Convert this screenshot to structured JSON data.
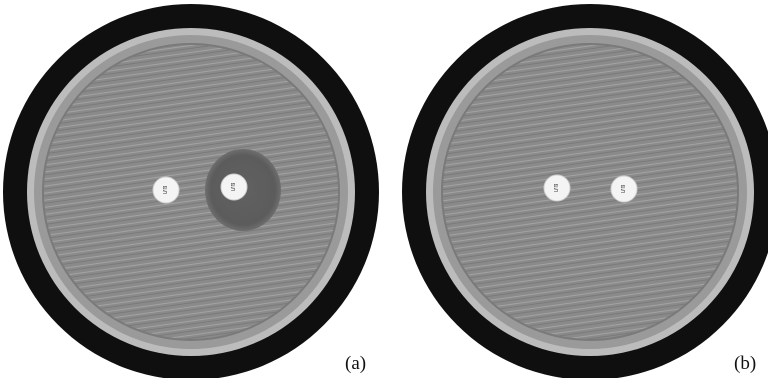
{
  "figure": {
    "panels": [
      {
        "label": "(a)",
        "discs": [
          {
            "text": "ยภ",
            "inhibition_zone": false
          },
          {
            "text": "ยภ",
            "inhibition_zone": true
          }
        ]
      },
      {
        "label": "(b)",
        "discs": [
          {
            "text": "ยภ",
            "inhibition_zone": false
          },
          {
            "text": "ยภ",
            "inhibition_zone": false
          }
        ]
      }
    ],
    "colors": {
      "rim": "#0f0f0f",
      "agar": "#8c8c8c",
      "zone": "#5f5f5f",
      "disc": "#f4f4f4",
      "background": "#ffffff"
    }
  }
}
